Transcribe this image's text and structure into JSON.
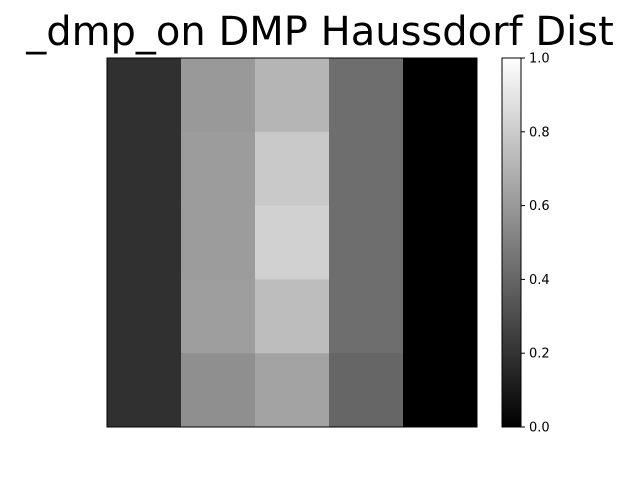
{
  "chart_data": {
    "type": "heatmap",
    "title": "_dmp_on DMP Haussdorf Dist",
    "xlabel": "",
    "ylabel": "",
    "colormap": "gray",
    "vmin": 0.0,
    "vmax": 1.0,
    "grid": false,
    "x_ticks": [],
    "y_ticks": [],
    "rows": 5,
    "cols": 5,
    "values": [
      [
        0.19,
        0.6,
        0.71,
        0.43,
        0.0
      ],
      [
        0.19,
        0.61,
        0.79,
        0.43,
        0.0
      ],
      [
        0.19,
        0.61,
        0.82,
        0.43,
        0.0
      ],
      [
        0.19,
        0.62,
        0.74,
        0.43,
        0.0
      ],
      [
        0.19,
        0.56,
        0.64,
        0.4,
        0.0
      ]
    ],
    "colorbar": {
      "placement": "right",
      "ticks": [
        "0.0",
        "0.2",
        "0.4",
        "0.6",
        "0.8",
        "1.0"
      ],
      "tick_values": [
        0.0,
        0.2,
        0.4,
        0.6,
        0.8,
        1.0
      ]
    }
  }
}
